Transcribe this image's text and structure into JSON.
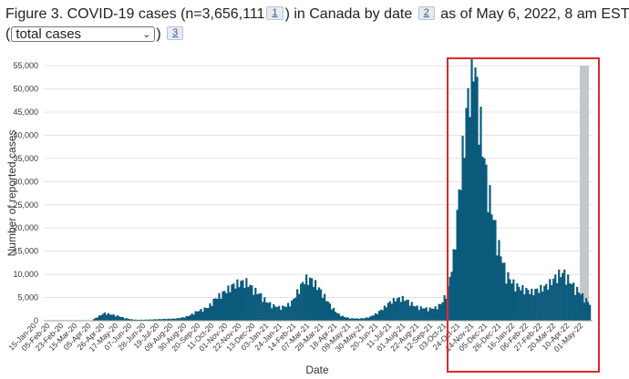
{
  "header": {
    "title_before": "Figure 3. COVID-19 cases (n=3,656,111",
    "footnote1": "1",
    "title_middle": ") in Canada by date",
    "footnote2": "2",
    "title_after": "as of May 6, 2022, 8 am EST",
    "paren_open": "(",
    "paren_close": ")",
    "footnote3": "3"
  },
  "selector": {
    "selected": "total cases"
  },
  "icons": {
    "dropdown": "chevron-down-icon"
  },
  "colors": {
    "bars": "#0b5a7c",
    "highlight_box": "#e0282c",
    "shaded_period": "#c2c7cb"
  },
  "chart_data": {
    "type": "bar",
    "title": "",
    "xlabel": "Date",
    "ylabel": "Number of reported cases",
    "ylim": [
      0,
      57000
    ],
    "yticks": [
      "0",
      "5,000",
      "10,000",
      "15,000",
      "20,000",
      "25,000",
      "30,000",
      "35,000",
      "40,000",
      "45,000",
      "50,000",
      "55,000"
    ],
    "ytick_values": [
      0,
      5000,
      10000,
      15000,
      20000,
      25000,
      30000,
      35000,
      40000,
      45000,
      50000,
      55000
    ],
    "grid": true,
    "xticks": [
      "15-Jan-20",
      "05-Feb-20",
      "23-Feb-20",
      "15-Mar-20",
      "05-Apr-20",
      "26-Apr-20",
      "17-May-20",
      "07-Jun-20",
      "28-Jun-20",
      "19-Jul-20",
      "09-Aug-20",
      "30-Aug-20",
      "20-Sep-20",
      "11-Oct-20",
      "01-Nov-20",
      "22-Nov-20",
      "13-Dec-20",
      "03-Jan-21",
      "24-Jan-21",
      "14-Feb-21",
      "07-Mar-21",
      "28-Mar-21",
      "18-Apr-21",
      "09-May-21",
      "30-May-21",
      "20-Jun-21",
      "11-Jul-21",
      "01-Aug-21",
      "22-Aug-21",
      "12-Sep-21",
      "03-Oct-21",
      "24-Oct-21",
      "14-Nov-21",
      "05-Dec-21",
      "26-Dec-21",
      "16-Jan-22",
      "06-Feb-22",
      "27-Feb-22",
      "20-Mar-22",
      "10-Apr-22",
      "01-May-22"
    ],
    "series": [
      {
        "values": [
          0,
          0,
          0,
          0,
          0,
          0,
          5,
          80,
          900,
          1600,
          1300,
          1000,
          600,
          300,
          200,
          200,
          250,
          300,
          350,
          400,
          450,
          650,
          1000,
          1800,
          2300,
          2800,
          4500,
          5500,
          6500,
          7500,
          8000,
          8000,
          6500,
          5500,
          4000,
          3200,
          2800,
          3000,
          4000,
          6500,
          8700,
          8500,
          7000,
          5000,
          3000,
          1500,
          800,
          500,
          450,
          500,
          800,
          1500,
          2500,
          3800,
          4500,
          4700,
          4000,
          3000,
          2700,
          2500,
          2600,
          3500,
          6000,
          14000,
          30000,
          44000,
          55500,
          42000,
          30000,
          22000,
          15000,
          10000,
          8000,
          7000,
          6500,
          6000,
          6500,
          7000,
          8000,
          9500,
          10000,
          8000,
          6500,
          5000,
          3500
        ]
      }
    ]
  }
}
